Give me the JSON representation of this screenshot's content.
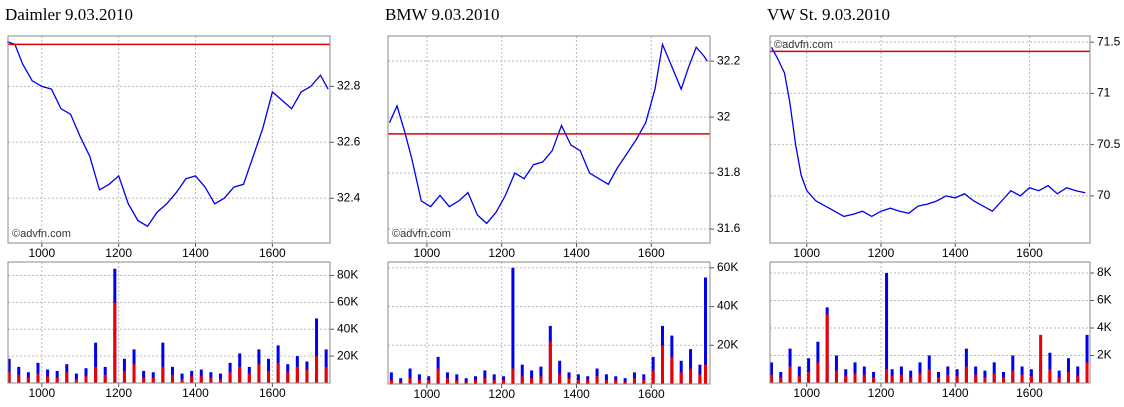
{
  "chart_data": [
    {
      "type": "line",
      "title": "Daimler 9.03.2010",
      "watermark": "©advfn.com",
      "watermark_corner": "lower left",
      "grid": true,
      "x": [
        910,
        930,
        950,
        975,
        1000,
        1025,
        1050,
        1075,
        1100,
        1125,
        1150,
        1175,
        1200,
        1225,
        1250,
        1275,
        1300,
        1325,
        1350,
        1375,
        1400,
        1425,
        1450,
        1475,
        1500,
        1525,
        1550,
        1575,
        1600,
        1625,
        1650,
        1675,
        1700,
        1725,
        1745
      ],
      "series": [
        {
          "color": "#0000ee",
          "values": [
            32.96,
            32.95,
            32.88,
            32.82,
            32.8,
            32.79,
            32.72,
            32.7,
            32.62,
            32.55,
            32.43,
            32.45,
            32.48,
            32.38,
            32.32,
            32.3,
            32.35,
            32.38,
            32.42,
            32.47,
            32.48,
            32.44,
            32.38,
            32.4,
            32.44,
            32.45,
            32.55,
            32.65,
            32.78,
            32.75,
            32.72,
            32.78,
            32.8,
            32.84,
            32.79
          ]
        }
      ],
      "reference_line": 32.95,
      "reference_color": "#dd0000",
      "xlim": [
        912,
        1750
      ],
      "xticks": [
        1000,
        1200,
        1400,
        1600
      ],
      "ylim": [
        32.24,
        32.98
      ],
      "yticks": [
        32.4,
        32.6,
        32.8
      ]
    },
    {
      "type": "bar",
      "grid": true,
      "x": [
        915,
        940,
        965,
        990,
        1015,
        1040,
        1065,
        1090,
        1115,
        1140,
        1165,
        1190,
        1215,
        1240,
        1265,
        1290,
        1315,
        1340,
        1365,
        1390,
        1415,
        1440,
        1465,
        1490,
        1515,
        1540,
        1565,
        1590,
        1615,
        1640,
        1665,
        1690,
        1715,
        1740
      ],
      "series": [
        {
          "color": "#0000ee",
          "values": [
            18000,
            12000,
            8000,
            15000,
            10000,
            9000,
            14000,
            7000,
            11000,
            30000,
            12000,
            85000,
            18000,
            25000,
            9000,
            8000,
            30000,
            12000,
            7000,
            9000,
            10000,
            8000,
            7000,
            15000,
            22000,
            12000,
            25000,
            18000,
            28000,
            14000,
            20000,
            16000,
            48000,
            25000
          ]
        },
        {
          "color": "#ee0000",
          "values": [
            8000,
            6000,
            4000,
            7000,
            5000,
            4000,
            8000,
            3000,
            5000,
            12000,
            6000,
            60000,
            9000,
            14000,
            4000,
            4000,
            12000,
            6000,
            3000,
            5000,
            5000,
            4000,
            3000,
            8000,
            12000,
            7000,
            14000,
            9000,
            15000,
            8000,
            12000,
            10000,
            20000,
            12000
          ]
        }
      ],
      "xlim": [
        912,
        1750
      ],
      "xticks": [
        1000,
        1200,
        1400,
        1600
      ],
      "ylim": [
        0,
        90000
      ],
      "yticks": [
        {
          "value": 20000,
          "label": "20K"
        },
        {
          "value": 40000,
          "label": "40K"
        },
        {
          "value": 60000,
          "label": "60K"
        },
        {
          "value": 80000,
          "label": "80K"
        }
      ]
    },
    {
      "type": "line",
      "title": "BMW 9.03.2010",
      "watermark": "©advfn.com",
      "watermark_corner": "lower left",
      "grid": true,
      "x": [
        900,
        920,
        940,
        960,
        985,
        1010,
        1035,
        1060,
        1085,
        1110,
        1135,
        1160,
        1185,
        1210,
        1235,
        1260,
        1285,
        1310,
        1335,
        1360,
        1385,
        1410,
        1435,
        1460,
        1485,
        1510,
        1535,
        1560,
        1585,
        1610,
        1630,
        1655,
        1680,
        1700,
        1720,
        1740,
        1750
      ],
      "series": [
        {
          "color": "#0000ee",
          "values": [
            31.98,
            32.04,
            31.95,
            31.85,
            31.7,
            31.68,
            31.72,
            31.68,
            31.7,
            31.73,
            31.65,
            31.62,
            31.66,
            31.72,
            31.8,
            31.78,
            31.83,
            31.84,
            31.88,
            31.97,
            31.9,
            31.88,
            31.8,
            31.78,
            31.76,
            31.82,
            31.87,
            31.92,
            31.98,
            32.1,
            32.26,
            32.18,
            32.1,
            32.18,
            32.25,
            32.22,
            32.2
          ]
        }
      ],
      "reference_line": 31.94,
      "reference_color": "#dd0000",
      "xlim": [
        896,
        1757
      ],
      "xticks": [
        1000,
        1200,
        1400,
        1600
      ],
      "ylim": [
        31.55,
        32.29
      ],
      "yticks": [
        31.6,
        31.8,
        32,
        32.2
      ]
    },
    {
      "type": "bar",
      "grid": true,
      "x": [
        905,
        930,
        955,
        980,
        1005,
        1030,
        1055,
        1080,
        1105,
        1130,
        1155,
        1180,
        1205,
        1230,
        1255,
        1280,
        1305,
        1330,
        1355,
        1380,
        1405,
        1430,
        1455,
        1480,
        1505,
        1530,
        1555,
        1580,
        1605,
        1630,
        1655,
        1680,
        1705,
        1730,
        1745
      ],
      "series": [
        {
          "color": "#0000ee",
          "values": [
            6000,
            3000,
            8000,
            5000,
            4000,
            14000,
            6000,
            5000,
            3000,
            4000,
            7000,
            5000,
            4000,
            60000,
            10000,
            7000,
            9000,
            30000,
            12000,
            6000,
            5000,
            4000,
            8000,
            5000,
            4000,
            3000,
            6000,
            5000,
            14000,
            30000,
            25000,
            12000,
            18000,
            10000,
            55000
          ]
        },
        {
          "color": "#ee0000",
          "values": [
            2000,
            1000,
            3000,
            2000,
            2000,
            8000,
            3000,
            2000,
            1000,
            2000,
            3000,
            2000,
            2000,
            8000,
            4000,
            3000,
            4000,
            22000,
            5000,
            3000,
            2000,
            2000,
            4000,
            2000,
            2000,
            1000,
            3000,
            2000,
            7000,
            20000,
            14000,
            6000,
            8000,
            5000,
            10000
          ]
        }
      ],
      "xlim": [
        896,
        1757
      ],
      "xticks": [
        1000,
        1200,
        1400,
        1600
      ],
      "ylim": [
        0,
        63000
      ],
      "yticks": [
        {
          "value": 20000,
          "label": "20K"
        },
        {
          "value": 40000,
          "label": "40K"
        },
        {
          "value": 60000,
          "label": "60K"
        }
      ]
    },
    {
      "type": "line",
      "title": "VW St. 9.03.2010",
      "watermark": "©advfn.com",
      "watermark_corner": "upper left",
      "grid": true,
      "x": [
        905,
        920,
        940,
        955,
        970,
        985,
        1000,
        1025,
        1050,
        1075,
        1100,
        1125,
        1150,
        1175,
        1200,
        1225,
        1250,
        1275,
        1300,
        1325,
        1350,
        1375,
        1400,
        1425,
        1450,
        1475,
        1500,
        1525,
        1550,
        1575,
        1600,
        1625,
        1650,
        1675,
        1700,
        1725,
        1750
      ],
      "series": [
        {
          "color": "#0000ee",
          "values": [
            71.45,
            71.35,
            71.2,
            70.9,
            70.5,
            70.2,
            70.05,
            69.95,
            69.9,
            69.85,
            69.8,
            69.82,
            69.85,
            69.8,
            69.85,
            69.88,
            69.85,
            69.83,
            69.9,
            69.92,
            69.95,
            70.0,
            69.98,
            70.02,
            69.95,
            69.9,
            69.85,
            69.95,
            70.05,
            70.0,
            70.08,
            70.05,
            70.1,
            70.02,
            70.08,
            70.05,
            70.03
          ]
        }
      ],
      "reference_line": 71.41,
      "reference_color": "#dd0000",
      "xlim": [
        901,
        1763
      ],
      "xticks": [
        1000,
        1200,
        1400,
        1600
      ],
      "ylim": [
        69.54,
        71.56
      ],
      "yticks": [
        70,
        70.5,
        71,
        71.5
      ]
    },
    {
      "type": "bar",
      "grid": true,
      "x": [
        905,
        930,
        955,
        980,
        1005,
        1030,
        1055,
        1080,
        1105,
        1130,
        1155,
        1180,
        1215,
        1230,
        1255,
        1280,
        1305,
        1330,
        1355,
        1380,
        1405,
        1430,
        1455,
        1480,
        1505,
        1530,
        1555,
        1580,
        1605,
        1630,
        1655,
        1680,
        1705,
        1730,
        1755
      ],
      "series": [
        {
          "color": "#0000ee",
          "values": [
            1500,
            800,
            2500,
            1200,
            1800,
            3000,
            5500,
            2000,
            1000,
            1500,
            1200,
            800,
            8000,
            1000,
            1200,
            900,
            1500,
            2000,
            800,
            1200,
            1000,
            2500,
            1200,
            900,
            1500,
            800,
            2000,
            1200,
            1000,
            1500,
            2200,
            900,
            1800,
            1200,
            3500
          ]
        },
        {
          "color": "#ee0000",
          "values": [
            600,
            400,
            1200,
            500,
            800,
            1500,
            5000,
            900,
            500,
            700,
            600,
            400,
            1000,
            500,
            600,
            400,
            700,
            1000,
            400,
            600,
            500,
            1200,
            600,
            400,
            700,
            400,
            900,
            600,
            500,
            3500,
            1000,
            400,
            800,
            500,
            1500
          ]
        }
      ],
      "xlim": [
        901,
        1763
      ],
      "xticks": [
        1000,
        1200,
        1400,
        1600
      ],
      "ylim": [
        0,
        8800
      ],
      "yticks": [
        {
          "value": 2000,
          "label": "2K"
        },
        {
          "value": 4000,
          "label": "4K"
        },
        {
          "value": 6000,
          "label": "6K"
        },
        {
          "value": 8000,
          "label": "8K"
        }
      ]
    }
  ]
}
